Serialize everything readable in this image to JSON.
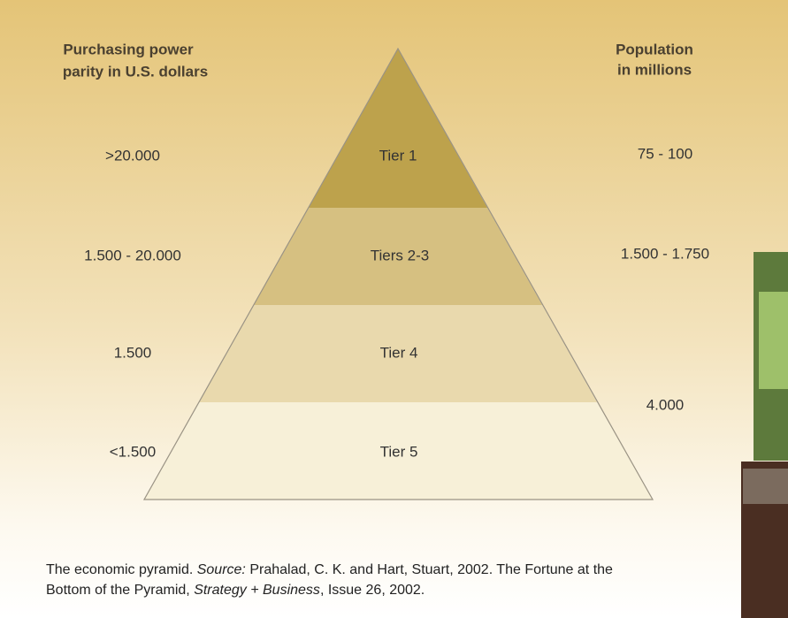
{
  "header": {
    "left": [
      "Purchasing power",
      "parity in U.S. dollars"
    ],
    "right": [
      "Population",
      "in millions"
    ]
  },
  "tiers": [
    {
      "label": "Tier 1",
      "ppp": ">20.000",
      "population": "75 - 100"
    },
    {
      "label": "Tiers 2-3",
      "ppp": "1.500 - 20.000",
      "population": "1.500 - 1.750"
    },
    {
      "label": "Tier 4",
      "ppp": "1.500"
    },
    {
      "label": "Tier 5",
      "ppp": "<1.500"
    }
  ],
  "population_lower_tiers": "4.000",
  "caption": {
    "line1": [
      "The economic pyramid. ",
      "Source:",
      " Prahalad, C. K. and Hart, Stuart, 2002. The Fortune at the"
    ],
    "line2": [
      "Bottom of the Pyramid, ",
      "Strategy + Business",
      ", Issue 26, 2002."
    ]
  }
}
